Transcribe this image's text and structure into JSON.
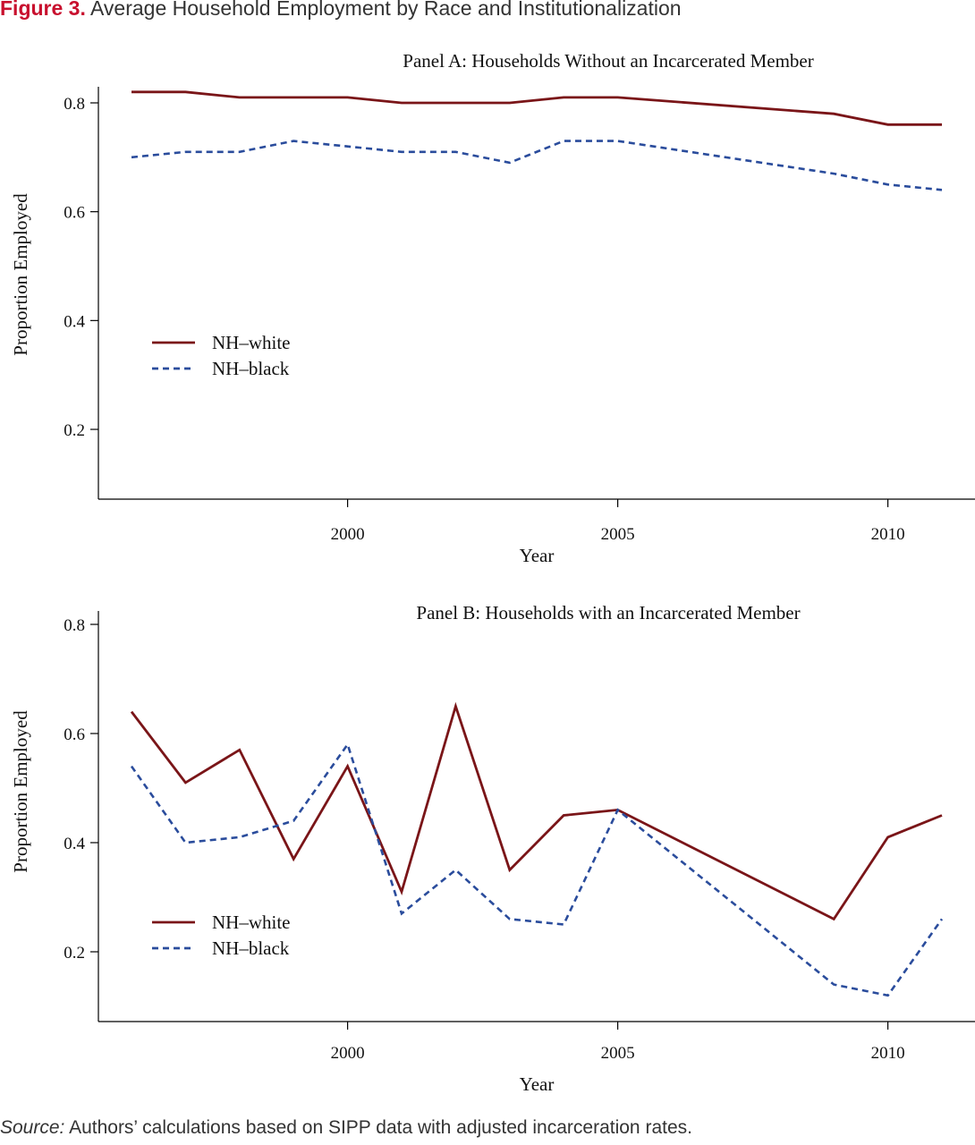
{
  "figure": {
    "label": "Figure 3.",
    "title": "Average Household Employment by Race and Institutionalization"
  },
  "source": {
    "label": "Source:",
    "text": "Authors’ calculations based on SIPP data with adjusted incarceration rates."
  },
  "chart_data": [
    {
      "type": "line",
      "title": "Panel A: Households Without an Incarcerated Member",
      "xlabel": "Year",
      "ylabel": "Proportion Employed",
      "x": [
        1996,
        1997,
        1998,
        1999,
        2000,
        2001,
        2002,
        2003,
        2004,
        2005,
        2009,
        2010,
        2011
      ],
      "xticks": [
        2000,
        2005,
        2010
      ],
      "yticks": [
        0.2,
        0.4,
        0.6,
        0.8
      ],
      "ytick_labels": [
        "0.2",
        "0.4",
        "0.6",
        "0.8"
      ],
      "ylim": [
        0.08,
        0.85
      ],
      "xlim": [
        1995.6,
        2011.5
      ],
      "legend_position": "center-left",
      "grid": false,
      "series": [
        {
          "name": "NH–white",
          "color": "#7a1518",
          "style": "solid",
          "values": [
            0.82,
            0.82,
            0.81,
            0.81,
            0.81,
            0.8,
            0.8,
            0.8,
            0.81,
            0.81,
            0.78,
            0.76,
            0.76
          ]
        },
        {
          "name": "NH–black",
          "color": "#2a4c9c",
          "style": "dashed",
          "values": [
            0.7,
            0.71,
            0.71,
            0.73,
            0.72,
            0.71,
            0.71,
            0.69,
            0.73,
            0.73,
            0.67,
            0.65,
            0.64
          ]
        }
      ]
    },
    {
      "type": "line",
      "title": "Panel B: Households with an Incarcerated Member",
      "xlabel": "Year",
      "ylabel": "Proportion Employed",
      "x": [
        1996,
        1997,
        1998,
        1999,
        2000,
        2001,
        2002,
        2003,
        2004,
        2005,
        2009,
        2010,
        2011
      ],
      "xticks": [
        2000,
        2005,
        2010
      ],
      "yticks": [
        0.2,
        0.4,
        0.6,
        0.8
      ],
      "ytick_labels": [
        "0.2",
        "0.4",
        "0.6",
        "0.8"
      ],
      "ylim": [
        0.08,
        0.85
      ],
      "xlim": [
        1995.6,
        2011.5
      ],
      "legend_position": "bottom-left",
      "grid": false,
      "series": [
        {
          "name": "NH–white",
          "color": "#7a1518",
          "style": "solid",
          "values": [
            0.64,
            0.51,
            0.57,
            0.37,
            0.54,
            0.31,
            0.65,
            0.35,
            0.45,
            0.46,
            0.26,
            0.41,
            0.45
          ]
        },
        {
          "name": "NH–black",
          "color": "#2a4c9c",
          "style": "dashed",
          "values": [
            0.54,
            0.4,
            0.41,
            0.44,
            0.58,
            0.27,
            0.35,
            0.26,
            0.25,
            0.46,
            0.14,
            0.12,
            0.26
          ]
        }
      ]
    }
  ]
}
